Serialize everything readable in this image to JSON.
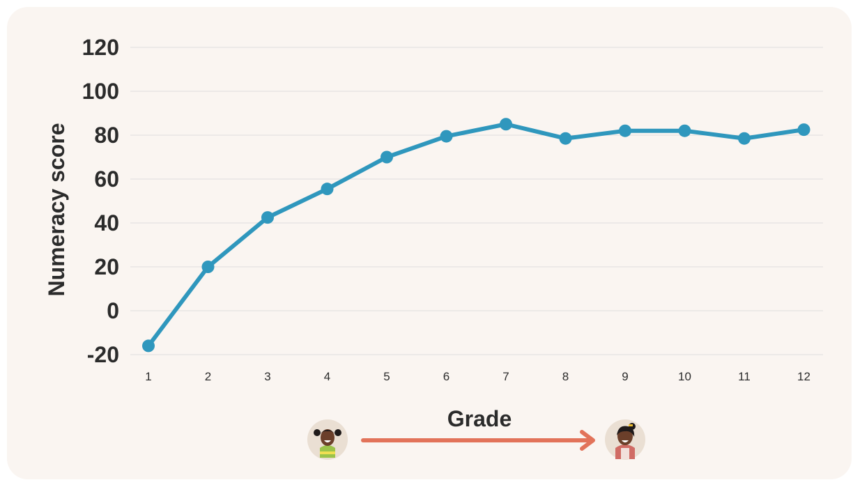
{
  "chart_data": {
    "type": "line",
    "ylabel": "Numeracy score",
    "xlabel": "Grade",
    "ylim": [
      -20,
      120
    ],
    "yticks": [
      "120",
      "100",
      "80",
      "60",
      "40",
      "20",
      "0",
      "-20"
    ],
    "ytick_values": [
      120,
      100,
      80,
      60,
      40,
      20,
      0,
      -20
    ],
    "categories": [
      "1",
      "2",
      "3",
      "4",
      "5",
      "6",
      "7",
      "8",
      "9",
      "10",
      "11",
      "12"
    ],
    "values": [
      -16,
      20,
      42.5,
      55.5,
      70,
      79.5,
      85,
      78.5,
      82,
      82,
      78.5,
      82.5
    ],
    "grid": "horizontal",
    "colors": {
      "line": "#2f97bd",
      "arrow": "#e2735a",
      "grid": "#dddddd",
      "background": "#faf5f1",
      "avatar_bg": "#eadfd3"
    }
  },
  "icons": {
    "start": "young-girl-avatar-icon",
    "end": "older-girl-avatar-icon"
  }
}
